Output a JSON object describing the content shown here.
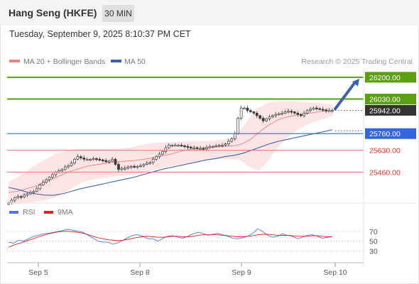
{
  "header": {
    "title": "Hang Seng (HKFE)",
    "timeframe": "30 MIN",
    "datetime": "Tuesday, September 9, 2025 8:10:37 PM CET"
  },
  "legend": {
    "ma20_label": "MA 20 + Bollinger Bands",
    "ma50_label": "MA 50",
    "copyright": "Research © 2025 Trading Central",
    "rsi_label": "RSI",
    "rsi_ma_label": "9MA"
  },
  "colors": {
    "ma20": "#f08080",
    "ma50": "#3c63a8",
    "bands_fill": "#fde2e2",
    "resistance": "#5aa010",
    "pivot_line": "#3366dd",
    "support": "#f07070",
    "candle": "#3a3a3a",
    "rsi": "#5577dd",
    "rsi_ma": "#dd2222"
  },
  "chart_data": [
    {
      "type": "line",
      "title": "",
      "x_tick_labels": [
        "Sep 5",
        "Sep 8",
        "Sep 9",
        "Sep 10"
      ],
      "ylim": [
        25240,
        26260
      ],
      "levels": [
        {
          "value": 26200.0,
          "label": "26200.00",
          "kind": "resistance"
        },
        {
          "value": 26030.0,
          "label": "26030.00",
          "kind": "resistance"
        },
        {
          "value": 25942.0,
          "label": "25942.00",
          "kind": "last_price"
        },
        {
          "value": 25760.0,
          "label": "25760.00",
          "kind": "pivot"
        },
        {
          "value": 25630.0,
          "label": "25630.00",
          "kind": "support"
        },
        {
          "value": 25460.0,
          "label": "25460.00",
          "kind": "support"
        }
      ],
      "candles": [
        25220,
        25240,
        25260,
        25270,
        25265,
        25280,
        25290,
        25300,
        25310,
        25330,
        25360,
        25380,
        25400,
        25420,
        25440,
        25460,
        25470,
        25480,
        25500,
        25510,
        25530,
        25560,
        25580,
        25570,
        25560,
        25560,
        25560,
        25565,
        25560,
        25555,
        25550,
        25540,
        25545,
        25560,
        25520,
        25480,
        25490,
        25490,
        25500,
        25505,
        25500,
        25505,
        25510,
        25520,
        25530,
        25535,
        25560,
        25580,
        25600,
        25620,
        25650,
        25670,
        25670,
        25670,
        25670,
        25665,
        25660,
        25655,
        25650,
        25650,
        25645,
        25645,
        25640,
        25650,
        25660,
        25660,
        25665,
        25670,
        25670,
        25680,
        25700,
        25720,
        25760,
        25880,
        25960,
        25960,
        25940,
        25930,
        25920,
        25900,
        25880,
        25860,
        25875,
        25890,
        25900,
        25910,
        25915,
        25920,
        25930,
        25935,
        25930,
        25920,
        25910,
        25900,
        25920,
        25940,
        25950,
        25960,
        25955,
        25950,
        25945,
        25940,
        25940,
        25942
      ],
      "series": [
        {
          "name": "MA 20",
          "values": [
            25300,
            25310,
            25330,
            25350,
            25380,
            25410,
            25440,
            25470,
            25490,
            25510,
            25520,
            25530,
            25540,
            25545,
            25550,
            25560,
            25570,
            25585,
            25600,
            25620,
            25635,
            25645,
            25650,
            25655,
            25660,
            25665,
            25680,
            25720,
            25780,
            25830,
            25870,
            25890,
            25905,
            25915,
            25925,
            25935,
            25940
          ]
        },
        {
          "name": "MA 50",
          "values": [
            25340,
            25325,
            25305,
            25290,
            25280,
            25278,
            25290,
            25310,
            25330,
            25345,
            25360,
            25375,
            25390,
            25405,
            25420,
            25440,
            25460,
            25480,
            25495,
            25510,
            25525,
            25540,
            25555,
            25565,
            25580,
            25590,
            25605,
            25630,
            25655,
            25680,
            25700,
            25715,
            25730,
            25745,
            25760,
            25775,
            25790
          ]
        }
      ],
      "bollinger": {
        "upper": [
          25380,
          25420,
          25470,
          25520,
          25560,
          25600,
          25620,
          25640,
          25640,
          25640,
          25640,
          25640,
          25640,
          25650,
          25665,
          25680,
          25690,
          25690,
          25695,
          25700,
          25705,
          25700,
          25705,
          25710,
          25730,
          25780,
          25880,
          25960,
          26000,
          26010,
          26010,
          26010,
          26005,
          26000,
          25995,
          25990
        ],
        "lower": [
          25220,
          25210,
          25215,
          25230,
          25240,
          25260,
          25300,
          25340,
          25380,
          25400,
          25410,
          25420,
          25430,
          25440,
          25450,
          25460,
          25480,
          25500,
          25510,
          25525,
          25540,
          25555,
          25560,
          25560,
          25560,
          25555,
          25500,
          25470,
          25540,
          25640,
          25720,
          25780,
          25820,
          25850,
          25875,
          25895
        ]
      }
    },
    {
      "type": "line",
      "title": "",
      "ylim": [
        15,
        90
      ],
      "y_ticks": [
        70,
        50,
        30
      ],
      "series": [
        {
          "name": "RSI",
          "values": [
            48,
            46,
            52,
            50,
            55,
            60,
            62,
            65,
            66,
            68,
            70,
            72,
            74,
            72,
            70,
            68,
            62,
            56,
            50,
            48,
            48,
            44,
            47,
            52,
            58,
            62,
            63,
            60,
            55,
            55,
            50,
            56,
            60,
            61,
            58,
            56,
            60,
            65,
            68,
            66,
            62,
            64,
            66,
            63,
            60,
            56,
            55,
            57,
            60,
            66,
            75,
            70,
            62,
            58,
            60,
            65,
            62,
            60,
            55,
            58,
            62,
            63,
            60,
            56,
            58,
            59
          ]
        },
        {
          "name": "9MA",
          "values": [
            38,
            42,
            45,
            48,
            52,
            55,
            59,
            62,
            65,
            67,
            69,
            70,
            70,
            69,
            68,
            66,
            63,
            60,
            57,
            55,
            53,
            52,
            51,
            52,
            54,
            56,
            58,
            59,
            60,
            59,
            58,
            58,
            59,
            60,
            60,
            59,
            59,
            60,
            62,
            63,
            63,
            63,
            63,
            62,
            61,
            60,
            59,
            59,
            60,
            61,
            63,
            64,
            64,
            63,
            62,
            62,
            62,
            61,
            60,
            60,
            60,
            61,
            61,
            60,
            59,
            59
          ]
        }
      ]
    }
  ]
}
